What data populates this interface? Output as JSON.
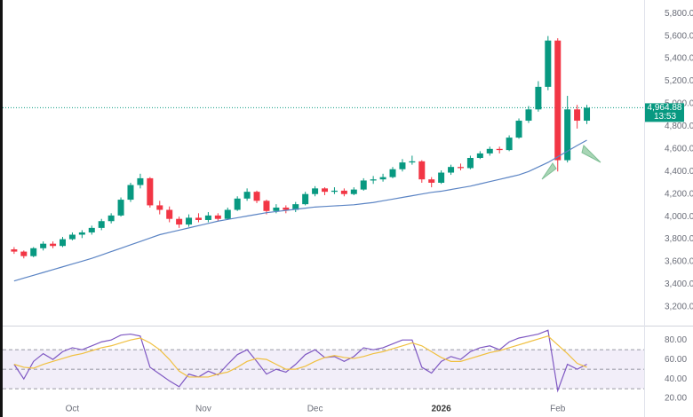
{
  "chart_data": [
    {
      "type": "candlestick",
      "xlim": [
        -0.72,
        64.9
      ],
      "ylim": [
        3050,
        5880
      ],
      "xticks": [
        {
          "value": 6,
          "label": "Oct"
        },
        {
          "value": 19.5,
          "label": "Nov"
        },
        {
          "value": 31,
          "label": "Dec"
        },
        {
          "value": 44,
          "label": "2026"
        },
        {
          "value": 56,
          "label": "Feb"
        }
      ],
      "yticks": [
        {
          "value": 3200,
          "label": "3,200.00"
        },
        {
          "value": 3400,
          "label": "3,400.00"
        },
        {
          "value": 3600,
          "label": "3,600.00"
        },
        {
          "value": 3800,
          "label": "3,800.00"
        },
        {
          "value": 4000,
          "label": "4,000.00"
        },
        {
          "value": 4200,
          "label": "4,200.00"
        },
        {
          "value": 4400,
          "label": "4,400.00"
        },
        {
          "value": 4600,
          "label": "4,600.00"
        },
        {
          "value": 4800,
          "label": "4,800.00"
        },
        {
          "value": 5000,
          "label": "5,000.00"
        },
        {
          "value": 5200,
          "label": "5,200.00"
        },
        {
          "value": 5400,
          "label": "5,400.00"
        },
        {
          "value": 5600,
          "label": "5,600.00"
        },
        {
          "value": 5800,
          "label": "5,800.00"
        }
      ],
      "last_price": {
        "value": 4964.88,
        "label": "4,964.88"
      },
      "countdown": "13:53",
      "series": [
        {
          "type": "candlestick",
          "color": "#089981",
          "down_color": "#f23645",
          "values": [
            [
              3710,
              3730,
              3670,
              3690
            ],
            [
              3690,
              3700,
              3630,
              3650
            ],
            [
              3650,
              3730,
              3640,
              3720
            ],
            [
              3720,
              3780,
              3700,
              3760
            ],
            [
              3760,
              3780,
              3720,
              3740
            ],
            [
              3740,
              3820,
              3730,
              3800
            ],
            [
              3800,
              3860,
              3790,
              3840
            ],
            [
              3840,
              3880,
              3810,
              3860
            ],
            [
              3860,
              3920,
              3840,
              3900
            ],
            [
              3900,
              3980,
              3880,
              3960
            ],
            [
              3960,
              4030,
              3940,
              4010
            ],
            [
              4010,
              4170,
              4000,
              4150
            ],
            [
              4150,
              4300,
              4130,
              4280
            ],
            [
              4280,
              4380,
              4250,
              4340
            ],
            [
              4340,
              4350,
              4080,
              4100
            ],
            [
              4100,
              4140,
              4020,
              4060
            ],
            [
              4060,
              4090,
              3950,
              3980
            ],
            [
              3980,
              4000,
              3900,
              3930
            ],
            [
              3930,
              4020,
              3910,
              3990
            ],
            [
              3990,
              4030,
              3950,
              3970
            ],
            [
              3970,
              4040,
              3950,
              4010
            ],
            [
              4010,
              4030,
              3960,
              3980
            ],
            [
              3980,
              4080,
              3970,
              4060
            ],
            [
              4060,
              4180,
              4050,
              4160
            ],
            [
              4160,
              4250,
              4140,
              4220
            ],
            [
              4220,
              4230,
              4120,
              4140
            ],
            [
              4140,
              4150,
              4020,
              4050
            ],
            [
              4050,
              4110,
              4030,
              4080
            ],
            [
              4080,
              4100,
              4030,
              4060
            ],
            [
              4060,
              4130,
              4040,
              4110
            ],
            [
              4110,
              4220,
              4100,
              4200
            ],
            [
              4200,
              4270,
              4180,
              4250
            ],
            [
              4250,
              4260,
              4190,
              4220
            ],
            [
              4220,
              4260,
              4200,
              4230
            ],
            [
              4230,
              4250,
              4180,
              4200
            ],
            [
              4200,
              4260,
              4190,
              4240
            ],
            [
              4240,
              4340,
              4230,
              4320
            ],
            [
              4320,
              4360,
              4290,
              4330
            ],
            [
              4330,
              4380,
              4310,
              4350
            ],
            [
              4350,
              4440,
              4340,
              4420
            ],
            [
              4420,
              4510,
              4400,
              4480
            ],
            [
              4480,
              4540,
              4460,
              4490
            ],
            [
              4490,
              4500,
              4300,
              4330
            ],
            [
              4330,
              4350,
              4260,
              4300
            ],
            [
              4300,
              4410,
              4290,
              4390
            ],
            [
              4390,
              4460,
              4370,
              4440
            ],
            [
              4440,
              4470,
              4410,
              4430
            ],
            [
              4430,
              4540,
              4420,
              4520
            ],
            [
              4520,
              4580,
              4510,
              4560
            ],
            [
              4560,
              4620,
              4540,
              4600
            ],
            [
              4600,
              4620,
              4560,
              4590
            ],
            [
              4590,
              4720,
              4580,
              4700
            ],
            [
              4700,
              4870,
              4690,
              4850
            ],
            [
              4850,
              4980,
              4830,
              4950
            ],
            [
              4950,
              5200,
              4930,
              5150
            ],
            [
              5150,
              5600,
              5120,
              5560
            ],
            [
              5560,
              5580,
              4400,
              4500
            ],
            [
              4500,
              5070,
              4480,
              4950
            ],
            [
              4950,
              4990,
              4780,
              4850
            ],
            [
              4850,
              4990,
              4820,
              4965
            ]
          ]
        },
        {
          "type": "line",
          "color": "#5b84c4",
          "values": [
            3430,
            3455,
            3480,
            3505,
            3530,
            3555,
            3580,
            3605,
            3630,
            3660,
            3690,
            3720,
            3750,
            3780,
            3810,
            3840,
            3860,
            3880,
            3900,
            3920,
            3940,
            3960,
            3975,
            3990,
            4005,
            4020,
            4035,
            4045,
            4055,
            4065,
            4075,
            4085,
            4090,
            4095,
            4100,
            4105,
            4115,
            4125,
            4140,
            4155,
            4170,
            4185,
            4200,
            4215,
            4225,
            4240,
            4255,
            4270,
            4290,
            4310,
            4330,
            4350,
            4370,
            4400,
            4440,
            4480,
            4530,
            4580,
            4630,
            4677
          ]
        }
      ]
    },
    {
      "type": "line",
      "xlim": [
        -0.72,
        64.9
      ],
      "ylim": [
        5.5,
        92
      ],
      "yticks": [
        {
          "value": 20,
          "label": "20.00"
        },
        {
          "value": 40,
          "label": "40.00"
        },
        {
          "value": 60,
          "label": "60.00"
        },
        {
          "value": 80,
          "label": "80.00"
        }
      ],
      "hlines": [
        70,
        50,
        30
      ],
      "band_color": "#7e57c2",
      "series": [
        {
          "color": "#7e57c2",
          "values": [
            55,
            40,
            58,
            66,
            60,
            68,
            72,
            70,
            74,
            78,
            80,
            85,
            86,
            84,
            52,
            45,
            38,
            32,
            45,
            42,
            48,
            44,
            55,
            65,
            70,
            58,
            45,
            50,
            47,
            55,
            65,
            70,
            62,
            63,
            58,
            63,
            72,
            70,
            72,
            76,
            80,
            80,
            52,
            46,
            58,
            63,
            60,
            68,
            72,
            74,
            70,
            78,
            82,
            84,
            86,
            90,
            28,
            55,
            50,
            55
          ]
        },
        {
          "color": "#f0c040",
          "values": [
            55,
            52,
            51,
            55,
            58,
            61,
            64,
            66,
            69,
            72,
            74,
            77,
            80,
            82,
            77,
            70,
            60,
            48,
            42,
            42,
            42,
            45,
            47,
            52,
            58,
            61,
            60,
            55,
            50,
            50,
            53,
            58,
            62,
            64,
            62,
            61,
            63,
            66,
            68,
            71,
            74,
            77,
            74,
            68,
            62,
            58,
            58,
            61,
            64,
            67,
            69,
            72,
            75,
            78,
            81,
            84,
            75,
            66,
            56,
            52
          ]
        }
      ]
    }
  ]
}
